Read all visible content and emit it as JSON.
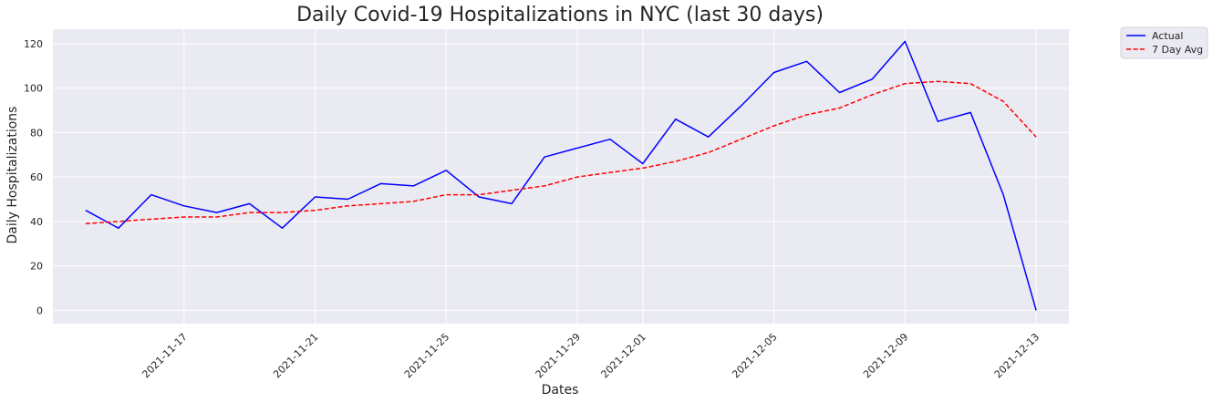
{
  "chart_data": {
    "type": "line",
    "title": "Daily Covid-19 Hospitalizations in NYC (last 30 days)",
    "xlabel": "Dates",
    "ylabel": "Daily Hospitalizations",
    "x": [
      "2021-11-14",
      "2021-11-15",
      "2021-11-16",
      "2021-11-17",
      "2021-11-18",
      "2021-11-19",
      "2021-11-20",
      "2021-11-21",
      "2021-11-22",
      "2021-11-23",
      "2021-11-24",
      "2021-11-25",
      "2021-11-26",
      "2021-11-27",
      "2021-11-28",
      "2021-11-29",
      "2021-11-30",
      "2021-12-01",
      "2021-12-02",
      "2021-12-03",
      "2021-12-04",
      "2021-12-05",
      "2021-12-06",
      "2021-12-07",
      "2021-12-08",
      "2021-12-09",
      "2021-12-10",
      "2021-12-11",
      "2021-12-12",
      "2021-12-13",
      "2021-12-14"
    ],
    "series": [
      {
        "name": "Actual",
        "color": "#0000ff",
        "dash": "solid",
        "values": [
          45,
          37,
          52,
          47,
          44,
          48,
          37,
          51,
          50,
          57,
          56,
          63,
          51,
          48,
          69,
          73,
          77,
          66,
          86,
          78,
          92,
          107,
          112,
          98,
          104,
          121,
          85,
          89,
          52,
          0,
          null
        ]
      },
      {
        "name": "7 Day Avg",
        "color": "#ff0000",
        "dash": "dashed",
        "values": [
          39,
          40,
          41,
          42,
          42,
          44,
          44,
          45,
          47,
          48,
          49,
          52,
          52,
          54,
          56,
          60,
          62,
          64,
          67,
          71,
          77,
          83,
          88,
          91,
          97,
          102,
          103,
          102,
          94,
          78,
          null
        ]
      }
    ],
    "x_ticks": [
      "2021-11-17",
      "2021-11-21",
      "2021-11-25",
      "2021-11-29",
      "2021-12-01",
      "2021-12-05",
      "2021-12-09",
      "2021-12-13"
    ],
    "y_ticks": [
      0,
      20,
      40,
      60,
      80,
      100,
      120
    ],
    "ylim": [
      -6,
      126.5
    ],
    "xlim": [
      "2021-11-13",
      "2021-12-14"
    ],
    "grid": true,
    "legend_position": "outside-top-right",
    "colors": {
      "plot_background": "#eaeaf2",
      "grid": "#ffffff"
    }
  }
}
